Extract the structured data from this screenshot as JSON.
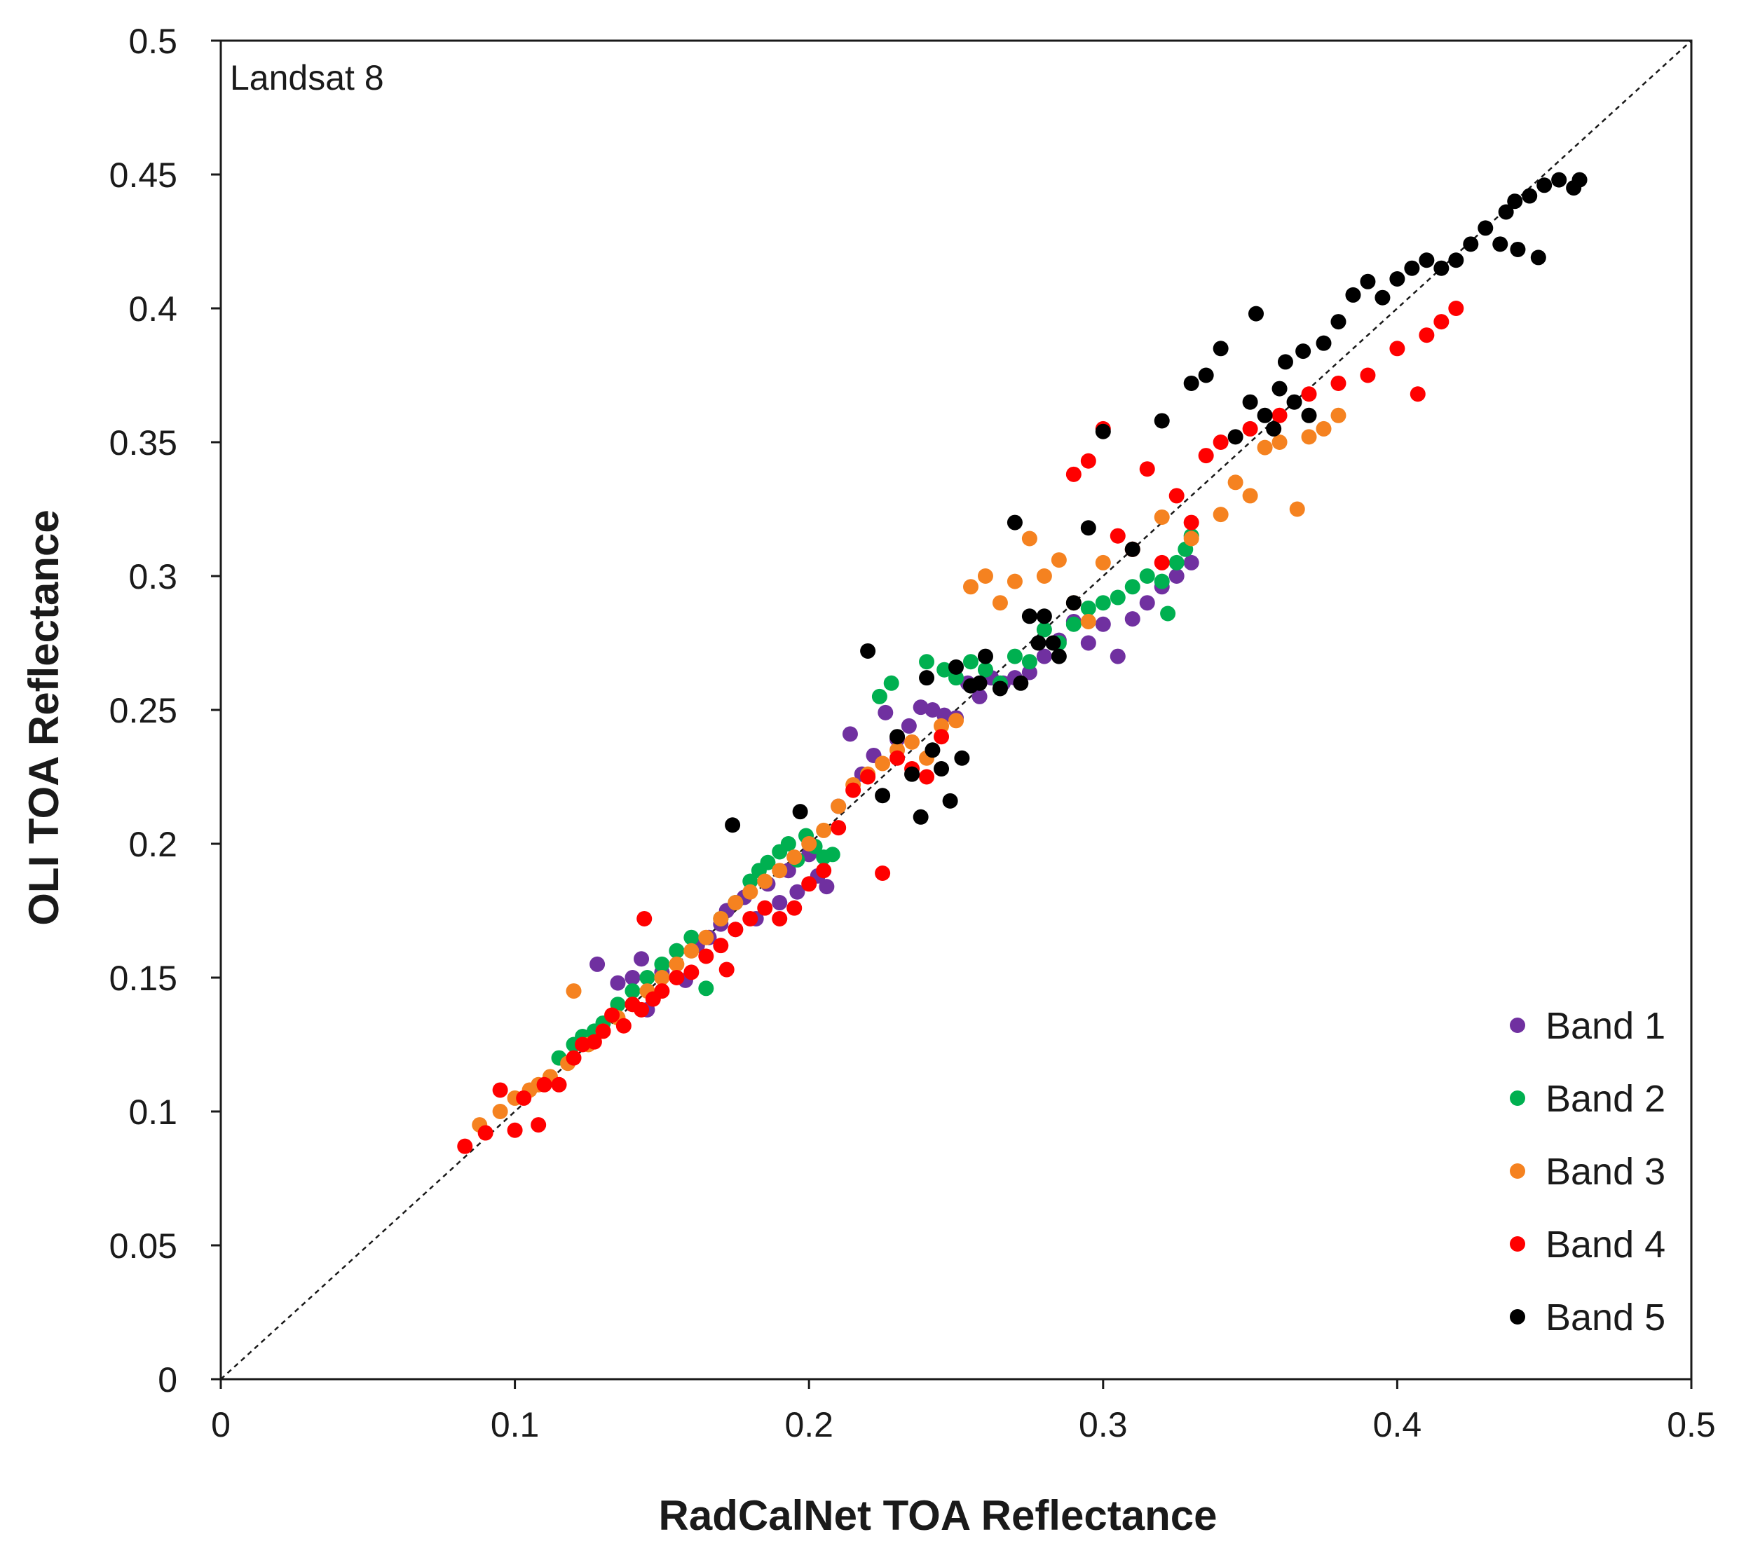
{
  "chart_data": {
    "type": "scatter",
    "annotation": "Landsat 8",
    "xlabel": "RadCalNet TOA Reflectance",
    "ylabel": "OLI TOA Reflectance",
    "xlim": [
      0,
      0.5
    ],
    "ylim": [
      0,
      0.5
    ],
    "xticks": [
      "0",
      "0.1",
      "0.2",
      "0.3",
      "0.4",
      "0.5"
    ],
    "yticks": [
      "0",
      "0.05",
      "0.1",
      "0.15",
      "0.2",
      "0.25",
      "0.3",
      "0.35",
      "0.4",
      "0.45",
      "0.5"
    ],
    "reference_line": "1:1",
    "legend_position": "bottom-right",
    "series": [
      {
        "name": "Band 1",
        "color": "#7030A0",
        "x": [
          0.128,
          0.135,
          0.14,
          0.143,
          0.145,
          0.15,
          0.155,
          0.158,
          0.162,
          0.166,
          0.17,
          0.172,
          0.175,
          0.178,
          0.182,
          0.186,
          0.19,
          0.193,
          0.196,
          0.2,
          0.203,
          0.206,
          0.21,
          0.214,
          0.218,
          0.222,
          0.226,
          0.23,
          0.234,
          0.238,
          0.242,
          0.246,
          0.25,
          0.254,
          0.258,
          0.262,
          0.266,
          0.27,
          0.275,
          0.28,
          0.285,
          0.29,
          0.295,
          0.3,
          0.305,
          0.31,
          0.315,
          0.32,
          0.325,
          0.33
        ],
        "y": [
          0.155,
          0.148,
          0.15,
          0.157,
          0.138,
          0.152,
          0.16,
          0.149,
          0.162,
          0.165,
          0.17,
          0.175,
          0.168,
          0.18,
          0.172,
          0.185,
          0.178,
          0.19,
          0.182,
          0.196,
          0.188,
          0.184,
          0.214,
          0.241,
          0.226,
          0.233,
          0.249,
          0.239,
          0.244,
          0.251,
          0.25,
          0.248,
          0.247,
          0.26,
          0.255,
          0.262,
          0.26,
          0.262,
          0.264,
          0.27,
          0.276,
          0.283,
          0.275,
          0.282,
          0.27,
          0.284,
          0.29,
          0.296,
          0.3,
          0.305
        ]
      },
      {
        "name": "Band 2",
        "color": "#00B050",
        "x": [
          0.115,
          0.12,
          0.123,
          0.127,
          0.13,
          0.135,
          0.14,
          0.145,
          0.15,
          0.155,
          0.16,
          0.165,
          0.17,
          0.175,
          0.18,
          0.183,
          0.186,
          0.19,
          0.193,
          0.196,
          0.199,
          0.202,
          0.205,
          0.208,
          0.224,
          0.228,
          0.24,
          0.246,
          0.25,
          0.255,
          0.26,
          0.265,
          0.27,
          0.275,
          0.28,
          0.285,
          0.29,
          0.295,
          0.3,
          0.305,
          0.31,
          0.315,
          0.32,
          0.322,
          0.325,
          0.328,
          0.33
        ],
        "y": [
          0.12,
          0.125,
          0.128,
          0.13,
          0.133,
          0.14,
          0.145,
          0.15,
          0.155,
          0.16,
          0.165,
          0.146,
          0.172,
          0.178,
          0.186,
          0.19,
          0.193,
          0.197,
          0.2,
          0.194,
          0.203,
          0.199,
          0.195,
          0.196,
          0.255,
          0.26,
          0.268,
          0.265,
          0.262,
          0.268,
          0.265,
          0.26,
          0.27,
          0.268,
          0.28,
          0.275,
          0.282,
          0.288,
          0.29,
          0.292,
          0.296,
          0.3,
          0.298,
          0.286,
          0.305,
          0.31,
          0.315
        ]
      },
      {
        "name": "Band 3",
        "color": "#F58220",
        "x": [
          0.088,
          0.095,
          0.1,
          0.105,
          0.108,
          0.112,
          0.118,
          0.12,
          0.125,
          0.13,
          0.135,
          0.14,
          0.145,
          0.15,
          0.155,
          0.16,
          0.165,
          0.17,
          0.175,
          0.18,
          0.185,
          0.19,
          0.195,
          0.2,
          0.205,
          0.21,
          0.215,
          0.22,
          0.225,
          0.23,
          0.235,
          0.24,
          0.245,
          0.25,
          0.255,
          0.26,
          0.265,
          0.27,
          0.275,
          0.28,
          0.285,
          0.29,
          0.295,
          0.3,
          0.31,
          0.32,
          0.33,
          0.34,
          0.345,
          0.35,
          0.355,
          0.36,
          0.366,
          0.37,
          0.375,
          0.38
        ],
        "y": [
          0.095,
          0.1,
          0.105,
          0.108,
          0.11,
          0.113,
          0.118,
          0.145,
          0.125,
          0.13,
          0.135,
          0.14,
          0.145,
          0.15,
          0.155,
          0.16,
          0.165,
          0.172,
          0.178,
          0.182,
          0.186,
          0.19,
          0.195,
          0.2,
          0.205,
          0.214,
          0.222,
          0.226,
          0.23,
          0.235,
          0.238,
          0.232,
          0.244,
          0.246,
          0.296,
          0.3,
          0.29,
          0.298,
          0.314,
          0.3,
          0.306,
          0.29,
          0.283,
          0.305,
          0.31,
          0.322,
          0.314,
          0.323,
          0.335,
          0.33,
          0.348,
          0.35,
          0.325,
          0.352,
          0.355,
          0.36
        ]
      },
      {
        "name": "Band 4",
        "color": "#FF0000",
        "x": [
          0.083,
          0.09,
          0.095,
          0.1,
          0.103,
          0.108,
          0.11,
          0.115,
          0.12,
          0.123,
          0.127,
          0.13,
          0.133,
          0.137,
          0.14,
          0.143,
          0.147,
          0.15,
          0.155,
          0.16,
          0.165,
          0.17,
          0.175,
          0.18,
          0.185,
          0.19,
          0.195,
          0.2,
          0.205,
          0.21,
          0.215,
          0.22,
          0.225,
          0.23,
          0.235,
          0.24,
          0.245,
          0.29,
          0.295,
          0.3,
          0.305,
          0.31,
          0.315,
          0.32,
          0.325,
          0.33,
          0.335,
          0.34,
          0.35,
          0.36,
          0.37,
          0.38,
          0.39,
          0.4,
          0.407,
          0.41,
          0.415,
          0.42,
          0.144,
          0.172
        ],
        "y": [
          0.087,
          0.092,
          0.108,
          0.093,
          0.105,
          0.095,
          0.11,
          0.11,
          0.12,
          0.125,
          0.126,
          0.13,
          0.136,
          0.132,
          0.14,
          0.138,
          0.142,
          0.145,
          0.15,
          0.152,
          0.158,
          0.162,
          0.168,
          0.172,
          0.176,
          0.172,
          0.176,
          0.185,
          0.19,
          0.206,
          0.22,
          0.225,
          0.189,
          0.232,
          0.228,
          0.225,
          0.24,
          0.338,
          0.343,
          0.355,
          0.315,
          0.31,
          0.34,
          0.305,
          0.33,
          0.32,
          0.345,
          0.35,
          0.355,
          0.36,
          0.368,
          0.372,
          0.375,
          0.385,
          0.368,
          0.39,
          0.395,
          0.4,
          0.172,
          0.153
        ]
      },
      {
        "name": "Band 5",
        "color": "#000000",
        "x": [
          0.174,
          0.197,
          0.22,
          0.225,
          0.23,
          0.235,
          0.238,
          0.24,
          0.242,
          0.245,
          0.248,
          0.25,
          0.252,
          0.255,
          0.258,
          0.26,
          0.265,
          0.27,
          0.272,
          0.275,
          0.278,
          0.28,
          0.283,
          0.285,
          0.29,
          0.295,
          0.3,
          0.31,
          0.32,
          0.33,
          0.335,
          0.34,
          0.345,
          0.35,
          0.352,
          0.355,
          0.358,
          0.36,
          0.362,
          0.365,
          0.368,
          0.37,
          0.375,
          0.38,
          0.385,
          0.39,
          0.395,
          0.4,
          0.405,
          0.41,
          0.415,
          0.42,
          0.425,
          0.43,
          0.435,
          0.44,
          0.445,
          0.45,
          0.455,
          0.46,
          0.462,
          0.448,
          0.437,
          0.441
        ],
        "y": [
          0.207,
          0.212,
          0.272,
          0.218,
          0.24,
          0.226,
          0.21,
          0.262,
          0.235,
          0.228,
          0.216,
          0.266,
          0.232,
          0.259,
          0.26,
          0.27,
          0.258,
          0.32,
          0.26,
          0.285,
          0.275,
          0.285,
          0.275,
          0.27,
          0.29,
          0.318,
          0.354,
          0.31,
          0.358,
          0.372,
          0.375,
          0.385,
          0.352,
          0.365,
          0.398,
          0.36,
          0.355,
          0.37,
          0.38,
          0.365,
          0.384,
          0.36,
          0.387,
          0.395,
          0.405,
          0.41,
          0.404,
          0.411,
          0.415,
          0.418,
          0.415,
          0.418,
          0.424,
          0.43,
          0.424,
          0.44,
          0.442,
          0.446,
          0.448,
          0.445,
          0.448,
          0.419,
          0.436,
          0.422
        ]
      }
    ]
  }
}
